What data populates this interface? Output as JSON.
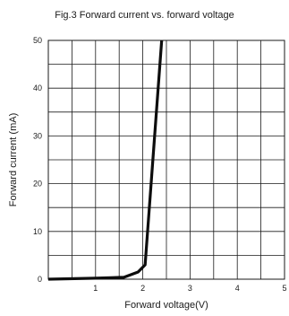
{
  "chart_data": {
    "type": "line",
    "title": "Fig.3 Forward current vs. forward voltage",
    "xlabel": "Forward voltage(V)",
    "ylabel": "Forward current (mA)",
    "xlim": [
      0,
      5
    ],
    "ylim": [
      0,
      50
    ],
    "x_ticks": [
      0,
      1,
      2,
      3,
      4,
      5
    ],
    "y_ticks": [
      0,
      10,
      20,
      30,
      40,
      50
    ],
    "x_tick_labels": [
      "",
      "1",
      "2",
      "3",
      "4",
      "5"
    ],
    "y_tick_labels": [
      "0",
      "10",
      "20",
      "30",
      "40",
      "50"
    ],
    "grid": true,
    "grid_color": "#1a1a1a",
    "line_color": "#0d0d0d",
    "series": [
      {
        "x": [
          0,
          1.0,
          1.6,
          1.9,
          2.05,
          2.4
        ],
        "y": [
          0,
          0.2,
          0.4,
          1.5,
          3.0,
          50
        ]
      }
    ]
  }
}
